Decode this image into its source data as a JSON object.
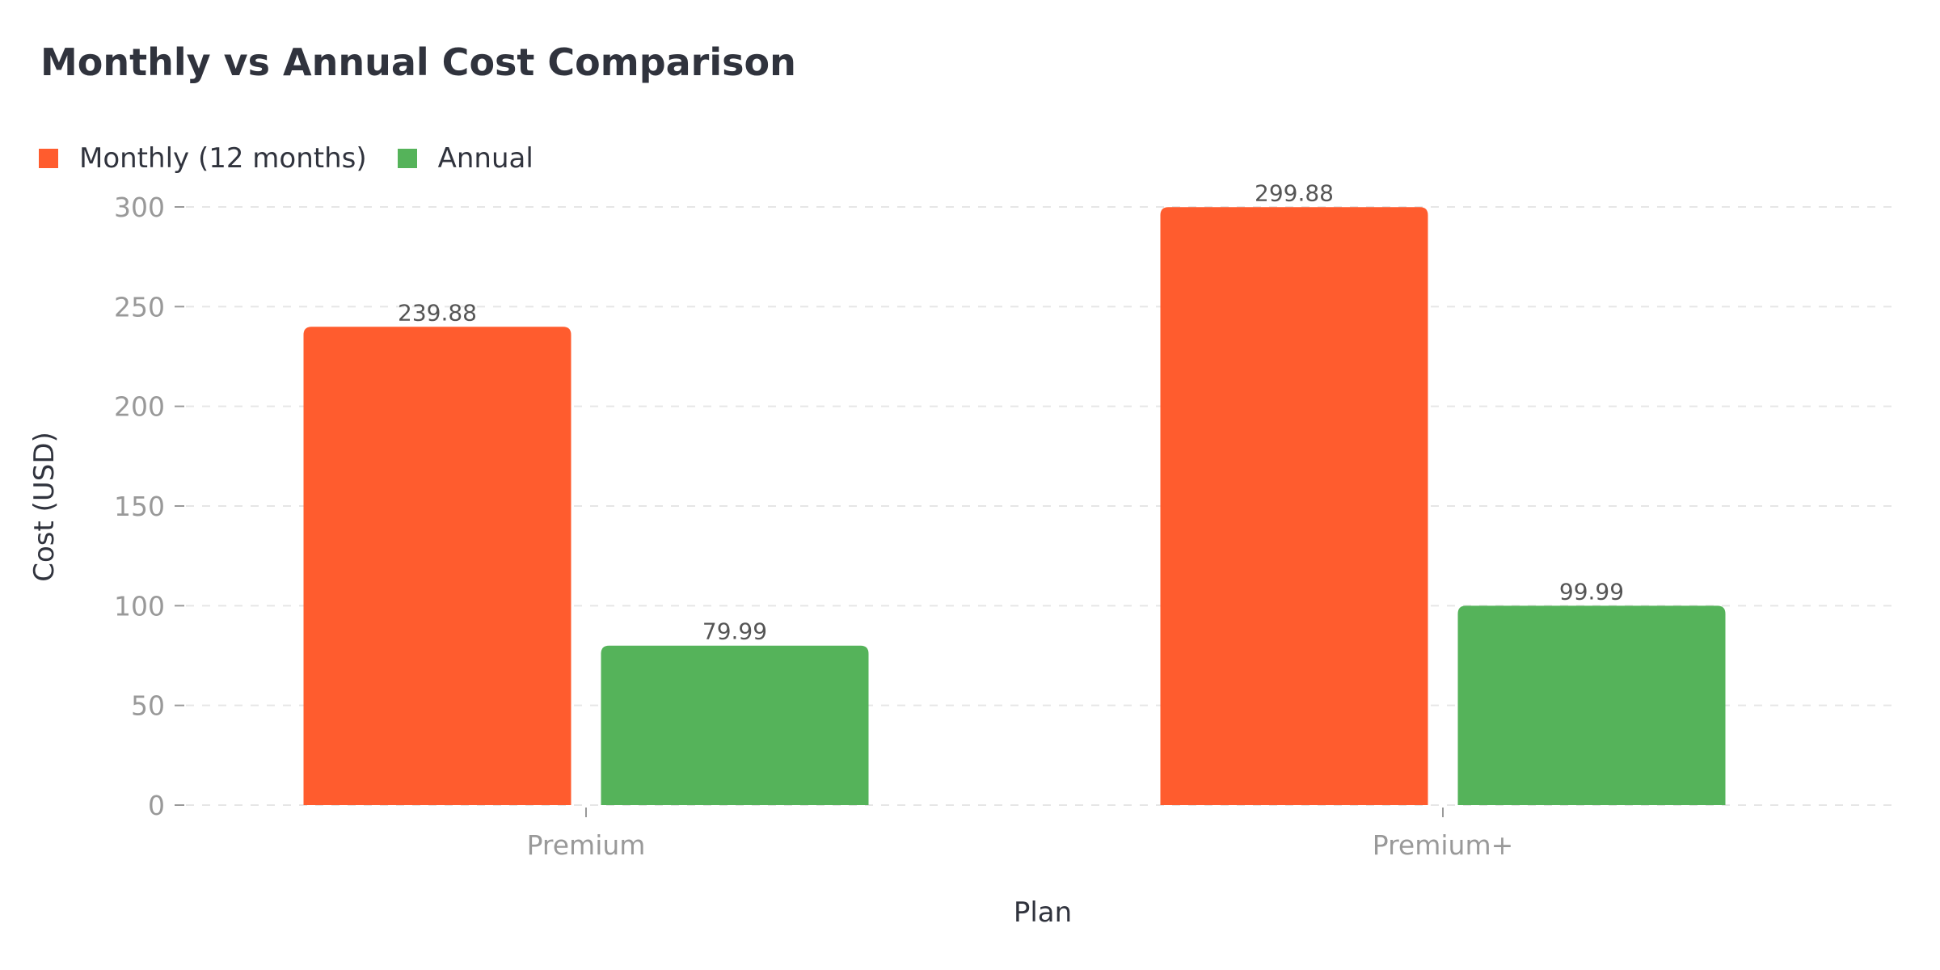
{
  "chart_data": {
    "type": "bar",
    "title": "Monthly vs Annual Cost Comparison",
    "xlabel": "Plan",
    "ylabel": "Cost (USD)",
    "categories": [
      "Premium",
      "Premium+"
    ],
    "series": [
      {
        "name": "Monthly (12 months)",
        "values": [
          239.88,
          299.88
        ],
        "color": "#FF5C2E"
      },
      {
        "name": "Annual",
        "values": [
          79.99,
          99.99
        ],
        "color": "#55B35A"
      }
    ],
    "ylim": [
      0,
      300
    ],
    "yticks": [
      0,
      50,
      100,
      150,
      200,
      250,
      300
    ],
    "grid": true,
    "legend": "top-left",
    "data_labels": true
  }
}
